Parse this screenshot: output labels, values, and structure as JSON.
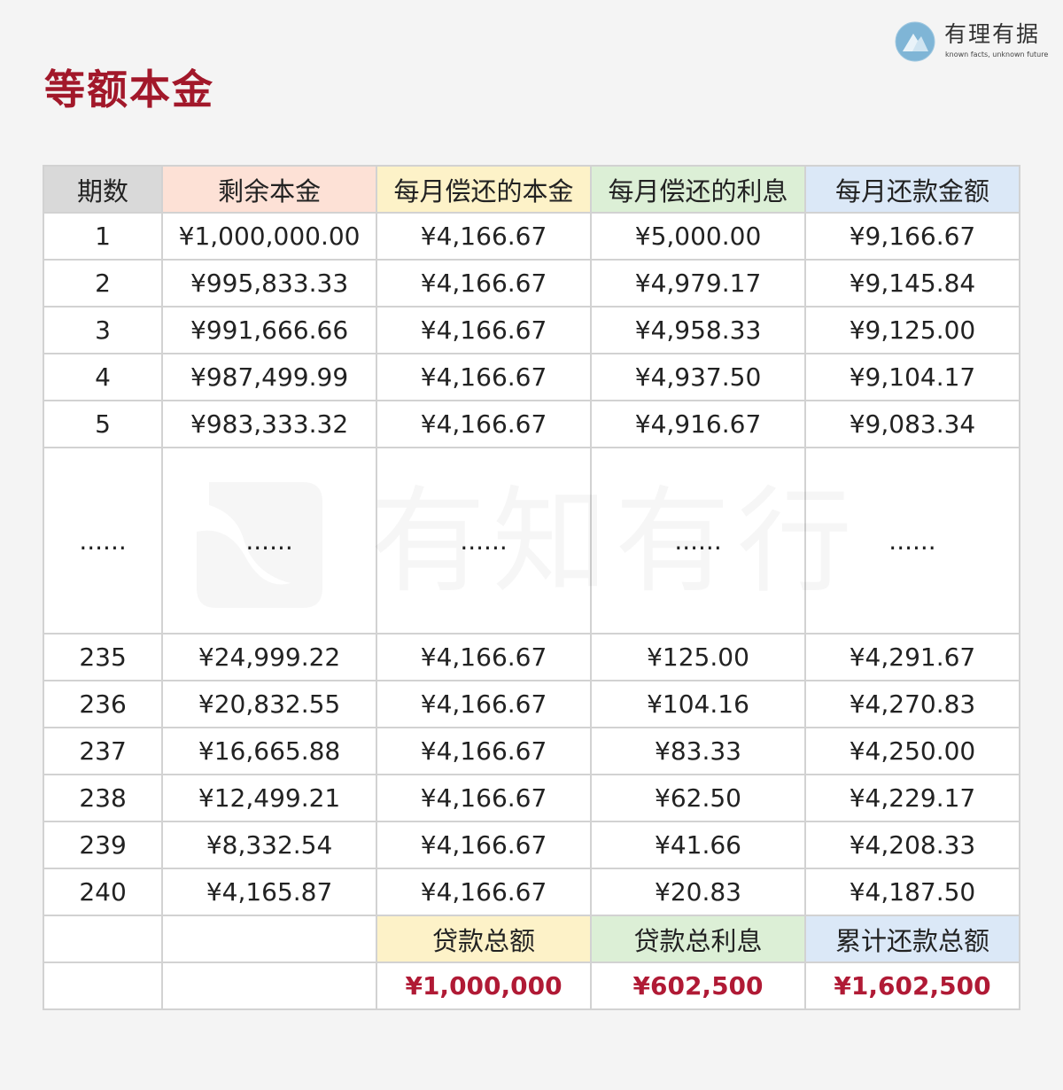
{
  "title": "等额本金",
  "brand": {
    "name": "有理有据",
    "slogan": "known facts, unknown future"
  },
  "watermark": "有知有行",
  "colors": {
    "title": "#a2182a",
    "header_period": "#d9d9d9",
    "header_balance": "#fde1d6",
    "header_principal": "#fdf2c8",
    "header_interest": "#dcefd6",
    "header_payment": "#dbe8f7",
    "summary_value": "#b01a35"
  },
  "table": {
    "headers": [
      "期数",
      "剩余本金",
      "每月偿还的本金",
      "每月偿还的利息",
      "每月还款金额"
    ],
    "rows_top": [
      [
        "1",
        "¥1,000,000.00",
        "¥4,166.67",
        "¥5,000.00",
        "¥9,166.67"
      ],
      [
        "2",
        "¥995,833.33",
        "¥4,166.67",
        "¥4,979.17",
        "¥9,145.84"
      ],
      [
        "3",
        "¥991,666.66",
        "¥4,166.67",
        "¥4,958.33",
        "¥9,125.00"
      ],
      [
        "4",
        "¥987,499.99",
        "¥4,166.67",
        "¥4,937.50",
        "¥9,104.17"
      ],
      [
        "5",
        "¥983,333.32",
        "¥4,166.67",
        "¥4,916.67",
        "¥9,083.34"
      ]
    ],
    "ellipsis": "......",
    "rows_bottom": [
      [
        "235",
        "¥24,999.22",
        "¥4,166.67",
        "¥125.00",
        "¥4,291.67"
      ],
      [
        "236",
        "¥20,832.55",
        "¥4,166.67",
        "¥104.16",
        "¥4,270.83"
      ],
      [
        "237",
        "¥16,665.88",
        "¥4,166.67",
        "¥83.33",
        "¥4,250.00"
      ],
      [
        "238",
        "¥12,499.21",
        "¥4,166.67",
        "¥62.50",
        "¥4,229.17"
      ],
      [
        "239",
        "¥8,332.54",
        "¥4,166.67",
        "¥41.66",
        "¥4,208.33"
      ],
      [
        "240",
        "¥4,165.87",
        "¥4,166.67",
        "¥20.83",
        "¥4,187.50"
      ]
    ],
    "summary": {
      "labels": [
        "贷款总额",
        "贷款总利息",
        "累计还款总额"
      ],
      "values": [
        "¥1,000,000",
        "¥602,500",
        "¥1,602,500"
      ]
    }
  }
}
